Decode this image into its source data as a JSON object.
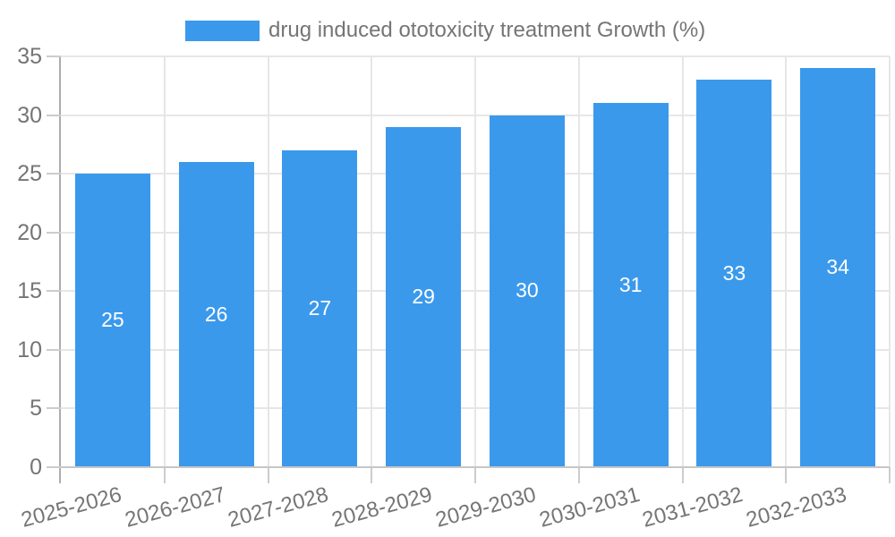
{
  "chart_data": {
    "type": "bar",
    "legend": "drug induced ototoxicity treatment Growth (%)",
    "legend_position": "top",
    "categories": [
      "2025-2026",
      "2026-2027",
      "2027-2028",
      "2028-2029",
      "2029-2030",
      "2030-2031",
      "2031-2032",
      "2032-2033"
    ],
    "values": [
      25,
      26,
      27,
      29,
      30,
      31,
      33,
      34
    ],
    "value_labels": [
      "25",
      "26",
      "27",
      "29",
      "30",
      "31",
      "33",
      "34"
    ],
    "yticks": [
      0,
      5,
      10,
      15,
      20,
      25,
      30,
      35
    ],
    "ylim": [
      0,
      35
    ],
    "xlabel": "",
    "ylabel": "",
    "grid": true,
    "x_label_rotation_deg": -15,
    "colors": {
      "bar": "#3B99EC",
      "value_text": "#FFFFFF",
      "axis_text": "#757575",
      "grid": "#E6E6E6",
      "axis_line": "#ADADAD",
      "tick_line": "#CCCCCC",
      "background": "#FFFFFF"
    }
  }
}
